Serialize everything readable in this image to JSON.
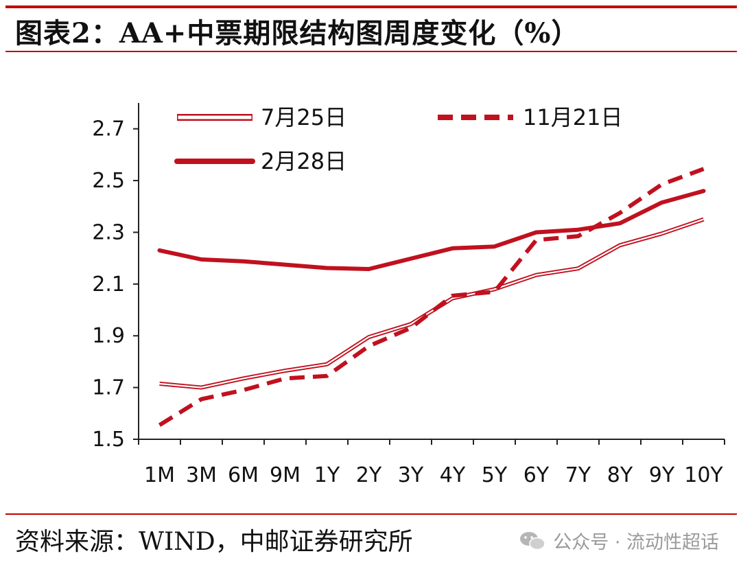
{
  "header": {
    "title": "图表2：AA+中票期限结构图周度变化（%）"
  },
  "footer": {
    "source": "资料来源：WIND，中邮证券研究所",
    "watermark": "公众号 · 流动性超话"
  },
  "colors": {
    "accent": "#c00000",
    "line": "#c0111f"
  },
  "chart_data": {
    "type": "line",
    "title": "图表2：AA+中票期限结构图周度变化（%）",
    "categories": [
      "1M",
      "3M",
      "6M",
      "9M",
      "1Y",
      "2Y",
      "3Y",
      "4Y",
      "5Y",
      "6Y",
      "7Y",
      "8Y",
      "9Y",
      "10Y"
    ],
    "ylim": [
      1.5,
      2.8
    ],
    "yticks": [
      1.5,
      1.7,
      1.9,
      2.1,
      2.3,
      2.5,
      2.7
    ],
    "ytick_labels": [
      "1.5",
      "1.7",
      "1.9",
      "2.1",
      "2.3",
      "2.5",
      "2.7"
    ],
    "grid": false,
    "legend_position": "top-left",
    "series": [
      {
        "name": "7月25日",
        "style": "double-line",
        "values": [
          1.715,
          1.7,
          1.735,
          1.765,
          1.79,
          1.895,
          1.945,
          2.045,
          2.08,
          2.135,
          2.16,
          2.25,
          2.295,
          2.35
        ]
      },
      {
        "name": "11月21日",
        "style": "dashed",
        "values": [
          1.555,
          1.655,
          1.69,
          1.735,
          1.745,
          1.86,
          1.93,
          2.055,
          2.07,
          2.27,
          2.285,
          2.375,
          2.485,
          2.545
        ]
      },
      {
        "name": "2月28日",
        "style": "thick-solid",
        "values": [
          2.23,
          2.195,
          2.188,
          2.175,
          2.162,
          2.158,
          2.198,
          2.238,
          2.245,
          2.3,
          2.31,
          2.335,
          2.415,
          2.46
        ]
      }
    ]
  }
}
